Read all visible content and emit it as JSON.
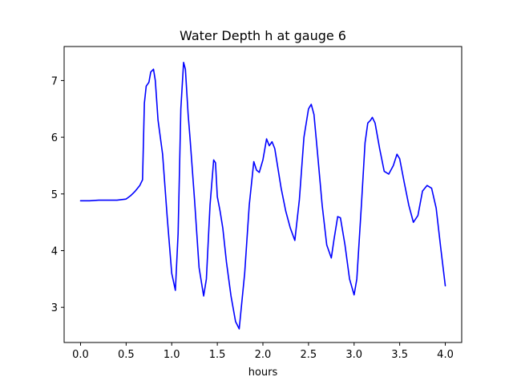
{
  "chart_data": {
    "type": "line",
    "title": "Water Depth h at gauge 6",
    "xlabel": "hours",
    "ylabel": "",
    "xlim": [
      -0.18,
      4.18
    ],
    "ylim": [
      2.38,
      7.6
    ],
    "xticks": [
      0.0,
      0.5,
      1.0,
      1.5,
      2.0,
      2.5,
      3.0,
      3.5,
      4.0
    ],
    "xtick_labels": [
      "0.0",
      "0.5",
      "1.0",
      "1.5",
      "2.0",
      "2.5",
      "3.0",
      "3.5",
      "4.0"
    ],
    "yticks": [
      3,
      4,
      5,
      6,
      7
    ],
    "ytick_labels": [
      "3",
      "4",
      "5",
      "6",
      "7"
    ],
    "grid": false,
    "series": [
      {
        "color": "#0000ff",
        "x": [
          0.0,
          0.1,
          0.2,
          0.3,
          0.4,
          0.5,
          0.55,
          0.6,
          0.65,
          0.68,
          0.7,
          0.72,
          0.75,
          0.77,
          0.8,
          0.82,
          0.85,
          0.9,
          0.95,
          1.0,
          1.04,
          1.07,
          1.1,
          1.13,
          1.15,
          1.18,
          1.2,
          1.25,
          1.3,
          1.35,
          1.38,
          1.42,
          1.46,
          1.48,
          1.5,
          1.53,
          1.56,
          1.6,
          1.65,
          1.7,
          1.74,
          1.8,
          1.85,
          1.9,
          1.93,
          1.96,
          2.0,
          2.04,
          2.07,
          2.1,
          2.13,
          2.15,
          2.2,
          2.25,
          2.3,
          2.35,
          2.4,
          2.45,
          2.5,
          2.53,
          2.56,
          2.6,
          2.65,
          2.7,
          2.75,
          2.78,
          2.82,
          2.85,
          2.9,
          2.95,
          3.0,
          3.03,
          3.08,
          3.12,
          3.15,
          3.18,
          3.2,
          3.23,
          3.28,
          3.33,
          3.38,
          3.43,
          3.47,
          3.5,
          3.55,
          3.6,
          3.65,
          3.7,
          3.75,
          3.8,
          3.85,
          3.9,
          3.95,
          4.0
        ],
        "y": [
          4.88,
          4.88,
          4.89,
          4.89,
          4.89,
          4.91,
          4.97,
          5.05,
          5.15,
          5.25,
          6.6,
          6.9,
          6.97,
          7.15,
          7.2,
          7.0,
          6.3,
          5.7,
          4.6,
          3.6,
          3.3,
          4.3,
          6.5,
          7.32,
          7.2,
          6.4,
          6.0,
          4.9,
          3.7,
          3.2,
          3.5,
          4.8,
          5.6,
          5.55,
          4.95,
          4.7,
          4.4,
          3.8,
          3.2,
          2.75,
          2.62,
          3.6,
          4.8,
          5.57,
          5.42,
          5.38,
          5.6,
          5.97,
          5.85,
          5.92,
          5.8,
          5.6,
          5.1,
          4.7,
          4.4,
          4.18,
          4.9,
          6.0,
          6.5,
          6.58,
          6.4,
          5.7,
          4.8,
          4.1,
          3.87,
          4.2,
          4.6,
          4.58,
          4.1,
          3.5,
          3.22,
          3.5,
          4.8,
          5.9,
          6.25,
          6.3,
          6.35,
          6.25,
          5.8,
          5.4,
          5.35,
          5.5,
          5.7,
          5.62,
          5.2,
          4.8,
          4.5,
          4.62,
          5.05,
          5.15,
          5.1,
          4.75,
          4.05,
          3.38
        ]
      }
    ]
  }
}
